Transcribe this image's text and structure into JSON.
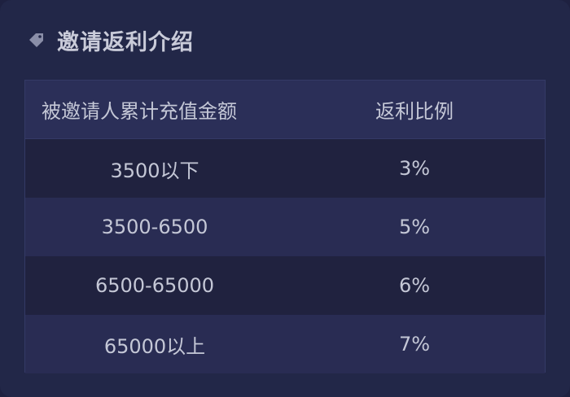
{
  "header": {
    "icon": "tag-icon",
    "title": "邀请返利介绍"
  },
  "table": {
    "columns": [
      "被邀请人累计充值金额",
      "返利比例"
    ],
    "rows": [
      {
        "amount": "3500以下",
        "rate": "3%"
      },
      {
        "amount": "3500-6500",
        "rate": "5%"
      },
      {
        "amount": "6500-65000",
        "rate": "6%"
      },
      {
        "amount": "65000以上",
        "rate": "7%"
      }
    ]
  },
  "colors": {
    "background": "#222748",
    "header_row": "#2b2f58",
    "row_odd": "#20223f",
    "row_even": "#292c53",
    "text": "#c4c7d6",
    "border": "#343a66"
  }
}
